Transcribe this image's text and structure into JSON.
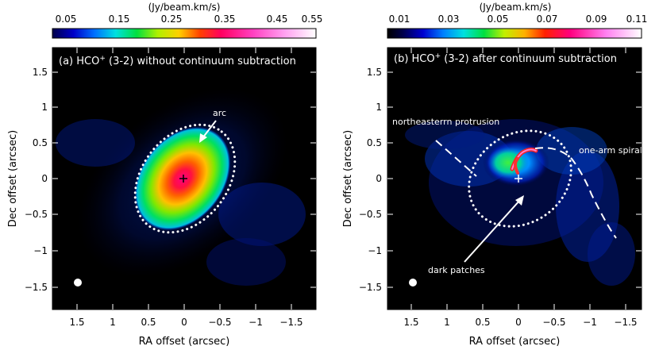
{
  "left": {
    "colorbar_unit": "(Jy/beam.km/s)",
    "colorbar_ticks": [
      "0.05",
      "0.15",
      "0.25",
      "0.35",
      "0.45",
      "0.55"
    ],
    "title_prefix": "(a) HCO",
    "title_sup": "+",
    "title_suffix": " (3-2) without continuum subtraction",
    "annotation_arc": "arc",
    "xlabel": "RA offset (arcsec)",
    "ylabel": "Dec offset (arcsec)",
    "xticks": [
      "1.5",
      "1",
      "0.5",
      "0",
      "−0.5",
      "−1",
      "−1.5"
    ],
    "yticks": [
      "1.5",
      "1",
      "0.5",
      "0",
      "−0.5",
      "−1",
      "−1.5"
    ]
  },
  "right": {
    "colorbar_unit": "(Jy/beam.km/s)",
    "colorbar_ticks": [
      "0.01",
      "0.03",
      "0.05",
      "0.07",
      "0.09",
      "0.11"
    ],
    "title_prefix": "(b) HCO",
    "title_sup": "+",
    "title_suffix": " (3-2) after continuum subtraction",
    "annotation_protrusion": "northeasterrn protrusion",
    "annotation_spiral": "one-arm spiral",
    "annotation_patches": "dark patches",
    "xlabel": "RA offset (arcsec)",
    "ylabel": "Dec offset (arcsec)",
    "xticks": [
      "1.5",
      "1",
      "0.5",
      "0",
      "−0.5",
      "−1",
      "−1.5"
    ],
    "yticks": [
      "1.5",
      "1",
      "0.5",
      "0",
      "−0.5",
      "−1",
      "−1.5"
    ]
  },
  "colors": {
    "background": "#000000",
    "annotation": "#ffffff"
  }
}
